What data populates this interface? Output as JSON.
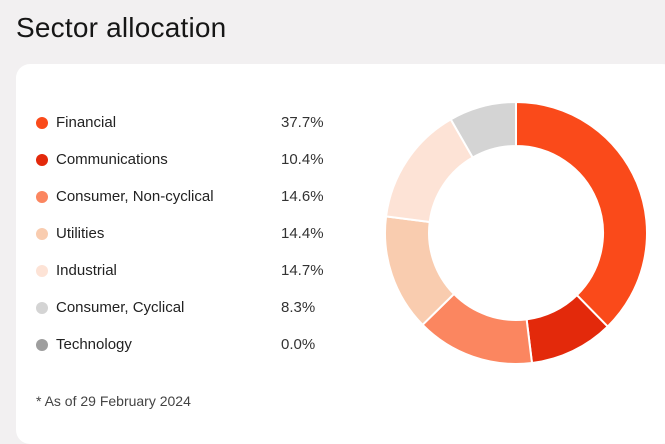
{
  "title": "Sector allocation",
  "note": "* As of 29 February 2024",
  "chart_data": {
    "type": "pie",
    "title": "Sector allocation",
    "donut": true,
    "legend_placement": "left",
    "start_angle": "top",
    "direction": "clockwise",
    "slices": [
      {
        "label": "Financial",
        "value": 37.7,
        "display": "37.7%",
        "color": "#fa4a1a"
      },
      {
        "label": "Communications",
        "value": 10.4,
        "display": "10.4%",
        "color": "#e3290b"
      },
      {
        "label": "Consumer, Non-cyclical",
        "value": 14.6,
        "display": "14.6%",
        "color": "#fb8660"
      },
      {
        "label": "Utilities",
        "value": 14.4,
        "display": "14.4%",
        "color": "#f9ccaf"
      },
      {
        "label": "Industrial",
        "value": 14.7,
        "display": "14.7%",
        "color": "#fde3d6"
      },
      {
        "label": "Consumer, Cyclical",
        "value": 8.3,
        "display": "8.3%",
        "color": "#d4d4d4"
      },
      {
        "label": "Technology",
        "value": 0.0,
        "display": "0.0%",
        "color": "#9e9e9e"
      }
    ]
  }
}
